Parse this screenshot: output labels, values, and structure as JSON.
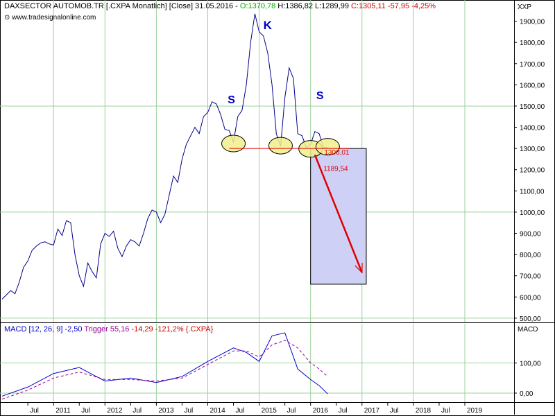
{
  "header": {
    "symbol": "DAXSECTOR AUTOMOB.TR [.CXPA  Monatlich] [Close] 31.05.2016 -",
    "open": "O:1370,78",
    "high": "H:1386,82",
    "low": "L:1289,99",
    "close": "C:1305,11 -57,95 -4,25%",
    "website": "www.tradesignalonline.com",
    "right_label": "XXP",
    "colors": {
      "open": "#00aa00",
      "close": "#d00000",
      "text": "#000000"
    }
  },
  "macd_header": {
    "macd": "MACD [12, 26, 9] -2,50",
    "trigger": "Trigger 55,16",
    "rest": "-14,29 -121,2% {.CXPA}",
    "right_label": "MACD",
    "colors": {
      "macd": "#0000cc",
      "trigger": "#990099"
    }
  },
  "annotations": {
    "left_shoulder": "S",
    "head": "K",
    "right_shoulder": "S",
    "neckline_value": "1300,01",
    "target_distance": "1189,54"
  },
  "chart_data": [
    {
      "type": "line",
      "title": "DAXSECTOR AUTOMOB.TR [.CXPA Monatlich] [Close]",
      "ylim": [
        480,
        2000
      ],
      "y_ticks": [
        500,
        600,
        700,
        800,
        900,
        1000,
        1100,
        1200,
        1300,
        1400,
        1500,
        1600,
        1700,
        1800,
        1900
      ],
      "y_tick_labels": [
        "500,00",
        "600,00",
        "700,00",
        "800,00",
        "900,00",
        "1000,00",
        "1100,00",
        "1200,00",
        "1300,00",
        "1400,00",
        "1500,00",
        "1600,00",
        "1700,00",
        "1800,00",
        "1900,00"
      ],
      "grid": true,
      "series": [
        {
          "color": "#00008b",
          "x": [
            "2010-01",
            "2010-02",
            "2010-03",
            "2010-04",
            "2010-05",
            "2010-06",
            "2010-07",
            "2010-08",
            "2010-09",
            "2010-10",
            "2010-11",
            "2010-12",
            "2011-01",
            "2011-02",
            "2011-03",
            "2011-04",
            "2011-05",
            "2011-06",
            "2011-07",
            "2011-08",
            "2011-09",
            "2011-10",
            "2011-11",
            "2011-12",
            "2012-01",
            "2012-02",
            "2012-03",
            "2012-04",
            "2012-05",
            "2012-06",
            "2012-07",
            "2012-08",
            "2012-09",
            "2012-10",
            "2012-11",
            "2012-12",
            "2013-01",
            "2013-02",
            "2013-03",
            "2013-04",
            "2013-05",
            "2013-06",
            "2013-07",
            "2013-08",
            "2013-09",
            "2013-10",
            "2013-11",
            "2013-12",
            "2014-01",
            "2014-02",
            "2014-03",
            "2014-04",
            "2014-05",
            "2014-06",
            "2014-07",
            "2014-08",
            "2014-09",
            "2014-10",
            "2014-11",
            "2014-12",
            "2015-01",
            "2015-02",
            "2015-03",
            "2015-04",
            "2015-05",
            "2015-06",
            "2015-07",
            "2015-08",
            "2015-09",
            "2015-10",
            "2015-11",
            "2015-12",
            "2016-01",
            "2016-02",
            "2016-03",
            "2016-04",
            "2016-05"
          ],
          "values": [
            590,
            610,
            630,
            615,
            670,
            740,
            770,
            820,
            840,
            855,
            860,
            850,
            845,
            920,
            890,
            960,
            950,
            800,
            700,
            650,
            760,
            720,
            690,
            850,
            900,
            885,
            910,
            830,
            790,
            840,
            870,
            860,
            840,
            900,
            970,
            1010,
            1000,
            950,
            990,
            1080,
            1170,
            1140,
            1250,
            1320,
            1360,
            1400,
            1370,
            1450,
            1470,
            1520,
            1510,
            1460,
            1390,
            1385,
            1330,
            1450,
            1480,
            1600,
            1800,
            1935,
            1850,
            1830,
            1750,
            1600,
            1370,
            1310,
            1540,
            1680,
            1630,
            1370,
            1360,
            1305,
            1320,
            1380,
            1370,
            1305,
            1305
          ]
        }
      ],
      "neckline": {
        "value": 1300.01,
        "x_start": "2014-06",
        "x_end": "2016-10"
      },
      "target_arrow": {
        "x_start": "2016-02",
        "y_start": 1270,
        "x_end": "2017-01",
        "y_end": 715
      },
      "target_box": {
        "x_start": "2016-01",
        "x_end": "2017-02",
        "y_top": 1300,
        "y_bottom": 660
      },
      "marked_lows": [
        {
          "x": "2014-07",
          "y": 1320
        },
        {
          "x": "2015-06",
          "y": 1310
        },
        {
          "x": "2016-01",
          "y": 1295
        },
        {
          "x": "2016-05",
          "y": 1305
        }
      ]
    },
    {
      "type": "line",
      "title": "MACD [12, 26, 9]",
      "ylim": [
        -30,
        230
      ],
      "y_ticks": [
        0,
        100
      ],
      "y_tick_labels": [
        "0,00",
        "100,00"
      ],
      "grid": true,
      "series": [
        {
          "name": "MACD",
          "color": "#0000cc",
          "x": [
            "2010-01",
            "2010-07",
            "2011-01",
            "2011-07",
            "2012-01",
            "2012-07",
            "2013-01",
            "2013-07",
            "2014-01",
            "2014-07",
            "2014-10",
            "2015-01",
            "2015-04",
            "2015-07",
            "2015-10",
            "2016-01",
            "2016-03",
            "2016-05"
          ],
          "values": [
            -10,
            20,
            65,
            85,
            40,
            50,
            35,
            55,
            105,
            150,
            135,
            105,
            190,
            200,
            80,
            45,
            25,
            -2.5
          ]
        },
        {
          "name": "Trigger",
          "color": "#990099",
          "x": [
            "2010-01",
            "2010-07",
            "2011-01",
            "2011-07",
            "2012-01",
            "2012-07",
            "2013-01",
            "2013-07",
            "2014-01",
            "2014-07",
            "2014-10",
            "2015-01",
            "2015-04",
            "2015-07",
            "2015-10",
            "2016-01",
            "2016-03",
            "2016-05"
          ],
          "values": [
            -20,
            10,
            50,
            70,
            45,
            45,
            40,
            50,
            95,
            140,
            140,
            120,
            160,
            175,
            150,
            100,
            80,
            55
          ]
        }
      ]
    }
  ],
  "x_axis": {
    "start": "2010-01",
    "end": "2019-12",
    "ticks": [
      {
        "x": "2010-07",
        "label": "Jul"
      },
      {
        "x": "2011-01",
        "label": "2011"
      },
      {
        "x": "2011-07",
        "label": "Jul"
      },
      {
        "x": "2012-01",
        "label": "2012"
      },
      {
        "x": "2012-07",
        "label": "Jul"
      },
      {
        "x": "2013-01",
        "label": "2013"
      },
      {
        "x": "2013-07",
        "label": "Jul"
      },
      {
        "x": "2014-01",
        "label": "2014"
      },
      {
        "x": "2014-07",
        "label": "Jul"
      },
      {
        "x": "2015-01",
        "label": "2015"
      },
      {
        "x": "2015-07",
        "label": "Jul"
      },
      {
        "x": "2016-01",
        "label": "2016"
      },
      {
        "x": "2016-07",
        "label": "Jul"
      },
      {
        "x": "2017-01",
        "label": "2017"
      },
      {
        "x": "2017-07",
        "label": "Jul"
      },
      {
        "x": "2018-01",
        "label": "2018"
      },
      {
        "x": "2018-07",
        "label": "Jul"
      },
      {
        "x": "2019-01",
        "label": "2019"
      }
    ]
  }
}
